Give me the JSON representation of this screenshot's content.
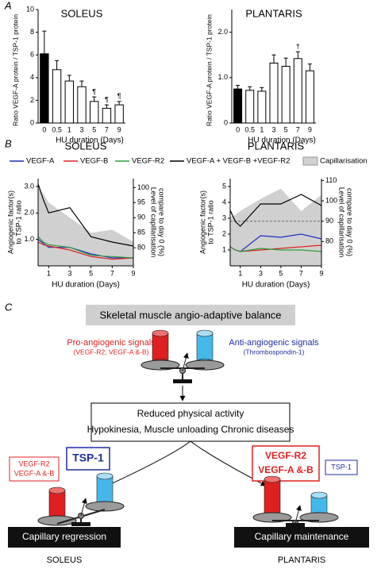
{
  "panel_labels": [
    "A",
    "B",
    "C"
  ],
  "chart_data": [
    {
      "type": "bar",
      "title": "SOLEUS",
      "xlabel": "HU duration (Days)",
      "ylabel": "Ratio VEGF-A protein / TSP-1 protein",
      "categories": [
        "0",
        "0.5",
        "1",
        "3",
        "5",
        "7",
        "9"
      ],
      "values": [
        6.1,
        4.7,
        3.7,
        3.2,
        1.9,
        1.3,
        1.6
      ],
      "errors": [
        2.0,
        0.8,
        0.5,
        0.5,
        0.4,
        0.3,
        0.3
      ],
      "annotations": [
        null,
        null,
        null,
        null,
        "¶",
        "¶",
        "¶"
      ],
      "colors": [
        "#000000",
        "#ffffff",
        "#ffffff",
        "#ffffff",
        "#ffffff",
        "#ffffff",
        "#ffffff"
      ],
      "ylim": [
        0,
        10
      ],
      "yticks": [
        0,
        2,
        4,
        6,
        8,
        10
      ]
    },
    {
      "type": "bar",
      "title": "PLANTARIS",
      "xlabel": "HU duration (Days)",
      "ylabel": "Ratio VEGF-A protein / TSP-1 protein",
      "categories": [
        "0",
        "0.5",
        "1",
        "3",
        "5",
        "7",
        "9"
      ],
      "values": [
        0.75,
        0.72,
        0.7,
        1.32,
        1.25,
        1.42,
        1.15
      ],
      "errors": [
        0.08,
        0.08,
        0.08,
        0.18,
        0.18,
        0.15,
        0.15
      ],
      "annotations": [
        null,
        null,
        null,
        null,
        null,
        "†",
        null
      ],
      "colors": [
        "#000000",
        "#ffffff",
        "#ffffff",
        "#ffffff",
        "#ffffff",
        "#ffffff",
        "#ffffff"
      ],
      "ylim": [
        0,
        2.5
      ],
      "yticks": [
        0,
        {
          "value": 1,
          "label": "1.0"
        },
        {
          "value": 2,
          "label": "2.0"
        }
      ]
    },
    {
      "type": "line",
      "title": "SOLEUS",
      "xlabel": "HU duration (Days)",
      "ylabel": [
        "Angiogenic factor(s)",
        "to TSP-1 ratio"
      ],
      "y2label": [
        "Level of capillarisation",
        "compare to day 0 (%)"
      ],
      "x": [
        0,
        0.5,
        1,
        3,
        5,
        7,
        9
      ],
      "series": [
        {
          "name": "Capillarisation",
          "color": "#d0d0d0",
          "axis": "y2",
          "kind": "area",
          "values": [
            100,
            98,
            95,
            90,
            85,
            86,
            82
          ]
        },
        {
          "name": "VEGF-A",
          "color": "#1f2fbf",
          "values": [
            1.0,
            0.85,
            0.7,
            0.7,
            0.45,
            0.3,
            0.3
          ]
        },
        {
          "name": "VEGF-B",
          "color": "#e02020",
          "values": [
            0.9,
            0.8,
            0.75,
            0.6,
            0.35,
            0.25,
            0.3
          ]
        },
        {
          "name": "VEGF-R2",
          "color": "#2e9e3a",
          "values": [
            1.1,
            0.9,
            0.8,
            0.7,
            0.4,
            0.35,
            0.3
          ]
        },
        {
          "name": "VEGF-A + VEGF-B +VEGF-R2",
          "color": "#000000",
          "values": [
            3.1,
            2.5,
            2.0,
            2.2,
            1.1,
            0.9,
            0.75
          ]
        }
      ],
      "xlim": [
        0,
        9
      ],
      "xticks": [
        1,
        3,
        5,
        7,
        9
      ],
      "ylim": [
        0,
        3.3
      ],
      "yticks": [
        {
          "value": 1,
          "label": "1.0"
        },
        {
          "value": 2,
          "label": "2.0"
        },
        {
          "value": 3,
          "label": "3.0"
        }
      ],
      "y2lim": [
        74,
        103
      ],
      "y2ticks": [
        80,
        85,
        90,
        95,
        100
      ]
    },
    {
      "type": "line",
      "title": "PLANTARIS",
      "xlabel": "HU duration (Days)",
      "ylabel": [
        "Angiogenic factor(s)",
        "to TSP-1 ratio"
      ],
      "y2label": [
        "Level of capillarisation",
        "compare to day 0 (%)"
      ],
      "x": [
        0,
        0.5,
        1,
        3,
        5,
        7,
        9
      ],
      "series": [
        {
          "color": "#d0d0d0",
          "axis": "y2",
          "kind": "area",
          "values": [
            92,
            93,
            95,
            101,
            106,
            95,
            103
          ]
        },
        {
          "color": "#1f2fbf",
          "values": [
            1.2,
            1.0,
            0.9,
            1.9,
            1.8,
            2.0,
            1.7
          ]
        },
        {
          "color": "#e02020",
          "values": [
            1.2,
            1.0,
            0.9,
            1.0,
            1.1,
            1.2,
            1.3
          ]
        },
        {
          "color": "#2e9e3a",
          "values": [
            1.2,
            1.0,
            0.9,
            1.1,
            1.0,
            1.0,
            0.9
          ]
        },
        {
          "color": "#000000",
          "values": [
            3.5,
            2.8,
            2.5,
            3.9,
            3.9,
            4.5,
            3.8
          ]
        }
      ],
      "reference_line": {
        "axis": "y2",
        "value": 90
      },
      "xlim": [
        0,
        9
      ],
      "xticks": [
        1,
        3,
        5,
        7,
        9
      ],
      "ylim": [
        0,
        5.5
      ],
      "yticks": [
        1,
        2,
        3,
        4,
        5
      ],
      "y2lim": [
        68,
        111
      ],
      "y2ticks": [
        80,
        90,
        100,
        110
      ]
    }
  ],
  "diagram": {
    "title": "Skeletal muscle angio-adaptive balance",
    "pro_signals": {
      "label": "Pro-angiogenic signals",
      "detail": "(VEGF-R2, VEGF-A &-B)"
    },
    "anti_signals": {
      "label": "Anti-angiogenic signals",
      "detail": "(Thrombospondin-1)"
    },
    "cause": [
      "Reduced physical activity",
      "Hypokinesia, Muscle unloading Chronic diseases"
    ],
    "soleus": {
      "pro": [
        "VEGF-R2",
        "VEGF-A &-B"
      ],
      "anti": "TSP-1",
      "outcome": "Capillary regression",
      "muscle": "SOLEUS"
    },
    "plantaris": {
      "pro": [
        "VEGF-R2",
        "VEGF-A &-B"
      ],
      "anti": "TSP-1",
      "outcome": "Capillary maintenance",
      "muscle": "PLANTARIS"
    }
  }
}
